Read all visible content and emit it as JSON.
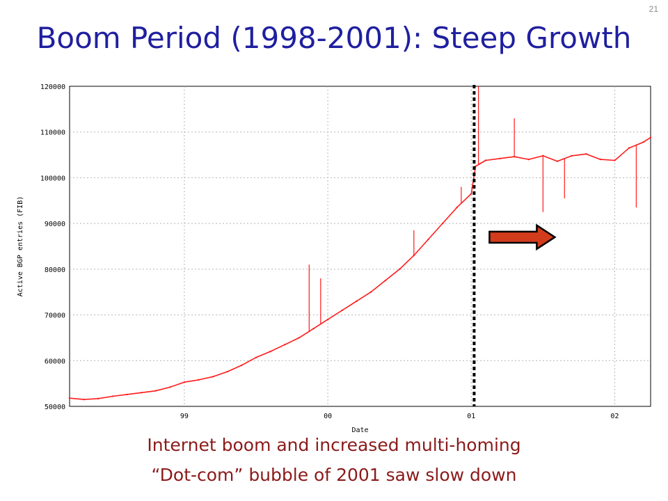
{
  "slide": {
    "number": "21",
    "title": "Boom Period (1998-2001): Steep Growth",
    "captions": [
      "Internet boom and increased multi-homing",
      "“Dot-com” bubble of 2001 saw slow down"
    ]
  },
  "colors": {
    "title": "#1f1fa0",
    "caption": "#8b1a1a",
    "series": "#ff1a1a",
    "arrow_fill": "#d23c1c",
    "arrow_stroke": "#000000",
    "grid": "#b4b4b4",
    "divider": "#000000"
  },
  "chart_data": {
    "type": "line",
    "title": "",
    "xlabel": "Date",
    "ylabel": "Active BGP entries (FIB)",
    "x_tick_labels": [
      "99",
      "00",
      "01",
      "02"
    ],
    "x_ticks": [
      1999.0,
      2000.0,
      2001.0,
      2002.0
    ],
    "xlim": [
      1998.2,
      2002.25
    ],
    "y_tick_labels": [
      "50000",
      "60000",
      "70000",
      "80000",
      "90000",
      "100000",
      "110000",
      "120000"
    ],
    "y_ticks": [
      50000,
      60000,
      70000,
      80000,
      90000,
      100000,
      110000,
      120000
    ],
    "ylim": [
      50000,
      120000
    ],
    "grid": true,
    "series": [
      {
        "x": [
          1998.2,
          1998.3,
          1998.4,
          1998.5,
          1998.6,
          1998.7,
          1998.8,
          1998.9,
          1999.0,
          1999.1,
          1999.2,
          1999.3,
          1999.4,
          1999.5,
          1999.6,
          1999.7,
          1999.8,
          1999.9,
          2000.0,
          2000.1,
          2000.2,
          2000.3,
          2000.4,
          2000.5,
          2000.6,
          2000.7,
          2000.8,
          2000.9,
          2001.0,
          2001.03,
          2001.1,
          2001.2,
          2001.3,
          2001.4,
          2001.5,
          2001.6,
          2001.7,
          2001.8,
          2001.9,
          2002.0,
          2002.1,
          2002.2,
          2002.25
        ],
        "y": [
          51800,
          51500,
          51700,
          52200,
          52600,
          53000,
          53400,
          54200,
          55300,
          55800,
          56500,
          57600,
          59000,
          60700,
          62000,
          63500,
          65000,
          67000,
          69000,
          71000,
          73000,
          75000,
          77500,
          80000,
          83000,
          86500,
          90000,
          93500,
          96500,
          102500,
          103800,
          104200,
          104600,
          104000,
          104800,
          103600,
          104800,
          105200,
          104000,
          103800,
          106500,
          107800,
          108800
        ]
      }
    ],
    "spikes": [
      {
        "x": 1999.87,
        "y": 81000
      },
      {
        "x": 1999.95,
        "y": 78000
      },
      {
        "x": 2000.6,
        "y": 88500
      },
      {
        "x": 2000.93,
        "y": 98000
      },
      {
        "x": 2001.05,
        "y": 120000
      },
      {
        "x": 2001.3,
        "y": 113000
      },
      {
        "x": 2001.5,
        "y": 92500
      },
      {
        "x": 2001.65,
        "y": 95500
      },
      {
        "x": 2002.15,
        "y": 93500
      }
    ],
    "divider_x": 2001.02,
    "annotation": "right-pointing arrow after the 2001 divider"
  }
}
